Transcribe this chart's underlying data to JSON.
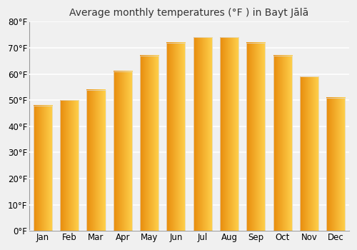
{
  "title": "Average monthly temperatures (°F ) in Bayt Jālā",
  "months": [
    "Jan",
    "Feb",
    "Mar",
    "Apr",
    "May",
    "Jun",
    "Jul",
    "Aug",
    "Sep",
    "Oct",
    "Nov",
    "Dec"
  ],
  "values": [
    48,
    50,
    54,
    61,
    67,
    72,
    74,
    74,
    72,
    67,
    59,
    51
  ],
  "bar_color": "#FFA726",
  "ylim": [
    0,
    80
  ],
  "yticks": [
    0,
    10,
    20,
    30,
    40,
    50,
    60,
    70,
    80
  ],
  "ytick_labels": [
    "0°F",
    "10°F",
    "20°F",
    "30°F",
    "40°F",
    "50°F",
    "60°F",
    "70°F",
    "80°F"
  ],
  "bg_color": "#f0f0f0",
  "grid_color": "#ffffff",
  "bar_edge_color": "#e0e0e0",
  "title_fontsize": 10,
  "tick_fontsize": 8.5
}
